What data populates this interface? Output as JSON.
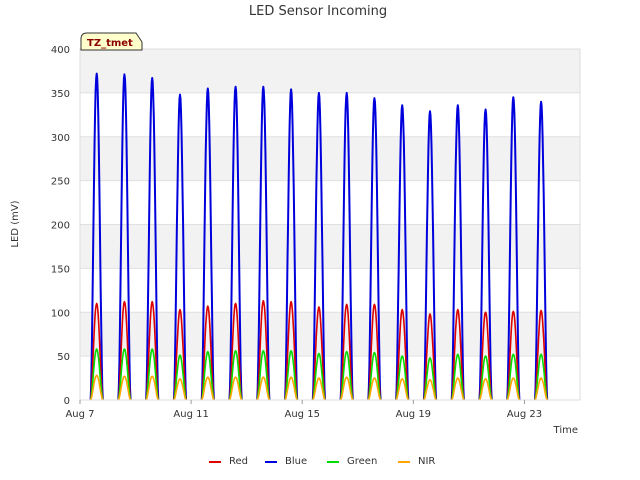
{
  "chart_data": {
    "type": "line",
    "title": "LED Sensor Incoming",
    "xlabel": "Time",
    "ylabel": "LED (mV)",
    "ylim": [
      0,
      400
    ],
    "yticks": [
      0,
      50,
      100,
      150,
      200,
      250,
      300,
      350,
      400
    ],
    "xlim": [
      7,
      25
    ],
    "xticks": [
      {
        "value": 7,
        "label": "Aug 7"
      },
      {
        "value": 11,
        "label": "Aug 11"
      },
      {
        "value": 15,
        "label": "Aug 15"
      },
      {
        "value": 19,
        "label": "Aug 19"
      },
      {
        "value": 23,
        "label": "Aug 23"
      }
    ],
    "badge": "TZ_tmet",
    "legend_position": "bottom",
    "grid": true,
    "peak_days": [
      7.6,
      8.6,
      9.6,
      10.6,
      11.6,
      12.6,
      13.6,
      14.6,
      15.6,
      16.6,
      17.6,
      18.6,
      19.6,
      20.6,
      21.6,
      22.6,
      23.6
    ],
    "series": [
      {
        "name": "Red",
        "color": "#dd0000",
        "peaks": [
          110,
          112,
          112,
          103,
          107,
          110,
          113,
          112,
          106,
          109,
          109,
          103,
          98,
          103,
          100,
          101,
          102
        ]
      },
      {
        "name": "Blue",
        "color": "#0000dd",
        "peaks": [
          372,
          371,
          367,
          348,
          355,
          357,
          357,
          354,
          350,
          350,
          344,
          336,
          329,
          336,
          331,
          345,
          340
        ]
      },
      {
        "name": "Green",
        "color": "#00dd00",
        "peaks": [
          58,
          58,
          58,
          51,
          55,
          56,
          56,
          56,
          53,
          55,
          54,
          50,
          48,
          52,
          50,
          52,
          52
        ]
      },
      {
        "name": "NIR",
        "color": "#ffa500",
        "peaks": [
          28,
          27,
          27,
          24,
          26,
          26,
          26,
          26,
          25,
          26,
          25,
          24,
          23,
          25,
          24,
          25,
          25
        ]
      }
    ]
  }
}
